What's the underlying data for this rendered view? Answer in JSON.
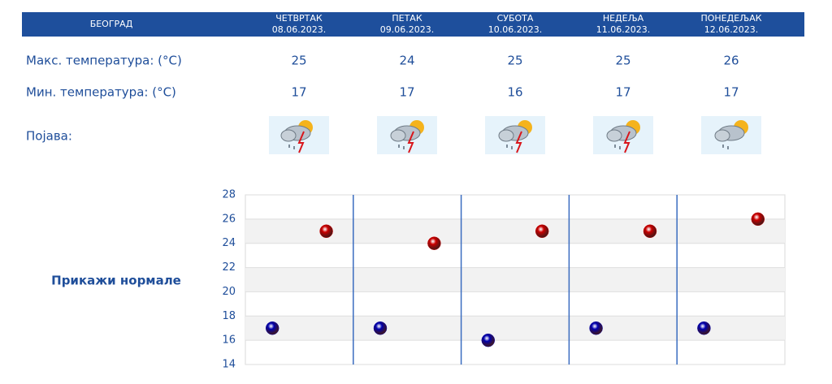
{
  "header": {
    "location": "БЕОГРАД"
  },
  "days": [
    {
      "name": "ЧЕТВРТАК",
      "date": "08.06.2023."
    },
    {
      "name": "ПЕТАК",
      "date": "09.06.2023."
    },
    {
      "name": "СУБОТА",
      "date": "10.06.2023."
    },
    {
      "name": "НЕДЕЉА",
      "date": "11.06.2023."
    },
    {
      "name": "ПОНЕДЕЉАК",
      "date": "12.06.2023."
    }
  ],
  "phenomenon_label": "Појава:",
  "show_normals": "Прикажи нормале",
  "chart_data": {
    "type": "dot",
    "series": [
      {
        "name": "Макс. температура: (°C)",
        "color": "#cc0000",
        "values": [
          25,
          24,
          25,
          25,
          26
        ]
      },
      {
        "name": "Мин. температура: (°C)",
        "color": "#0000b0",
        "values": [
          17,
          17,
          16,
          17,
          17
        ]
      }
    ],
    "ylim": [
      14,
      28
    ],
    "yticks": [
      14,
      16,
      18,
      20,
      22,
      24,
      26,
      28
    ],
    "grid": true
  }
}
